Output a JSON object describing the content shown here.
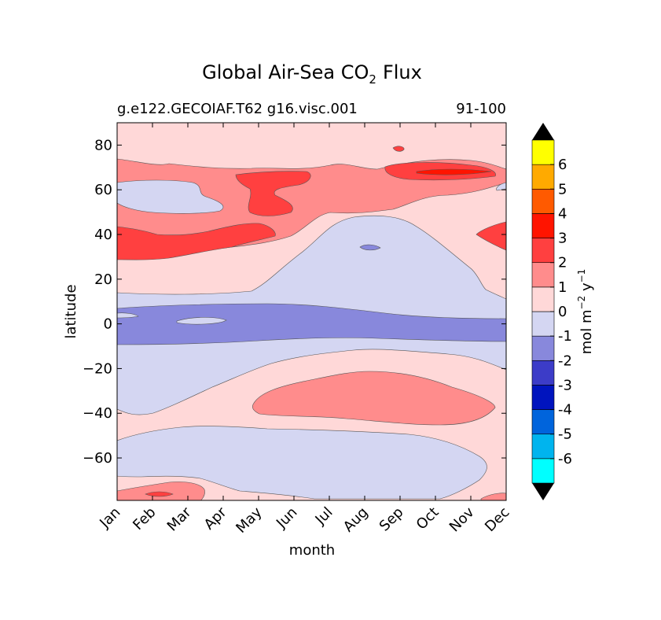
{
  "chart_data": {
    "type": "contour",
    "title_main": "Global Air-Sea CO",
    "title_sub": "2",
    "title_tail": "Flux",
    "subtitle_left": "g.e122.GECOIAF.T62 g16.visc.001",
    "subtitle_right": "91-100",
    "xlabel": "month",
    "ylabel": "latitude",
    "x_ticks": [
      "Jan",
      "Feb",
      "Mar",
      "Apr",
      "May",
      "Jun",
      "Jul",
      "Aug",
      "Sep",
      "Oct",
      "Nov",
      "Dec"
    ],
    "y_ticks": [
      80,
      60,
      40,
      20,
      0,
      -20,
      -40,
      -60
    ],
    "ylim": [
      -79,
      90
    ],
    "colorbar": {
      "label_main": "mol m",
      "label_exp1": "−2",
      "label_mid": " y",
      "label_exp2": "−1",
      "levels": [
        -7,
        -6,
        -5,
        -4,
        -3,
        -2,
        -1,
        0,
        1,
        2,
        3,
        4,
        5,
        6,
        7
      ],
      "tick_labels": [
        "-6",
        "-5",
        "-4",
        "-3",
        "-2",
        "-1",
        "0",
        "1",
        "2",
        "3",
        "4",
        "5",
        "6"
      ],
      "colors": [
        "#00ffff",
        "#00b4ee",
        "#0064dc",
        "#0014be",
        "#3c3cc8",
        "#8888dc",
        "#d4d6f2",
        "#ffd8d8",
        "#ff8c8c",
        "#ff4040",
        "#ff1400",
        "#ff5a00",
        "#ffaa00",
        "#ffff00"
      ],
      "extend_color": "#000000"
    },
    "background_value": 0.5
  }
}
